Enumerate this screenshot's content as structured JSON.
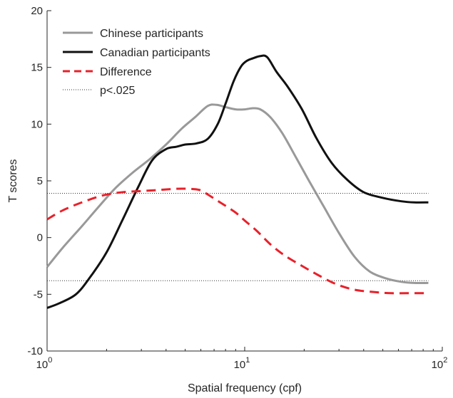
{
  "chart_data": {
    "type": "line",
    "xlabel": "Spatial frequency (cpf)",
    "ylabel": "T scores",
    "xscale": "log",
    "xlim": [
      1,
      100
    ],
    "ylim": [
      -10,
      20
    ],
    "grid": false,
    "legend_position": "top-left",
    "x_ticks": [
      {
        "value": 1,
        "base": "10",
        "exp": "0"
      },
      {
        "value": 10,
        "base": "10",
        "exp": "1"
      },
      {
        "value": 100,
        "base": "10",
        "exp": "2"
      }
    ],
    "y_ticks": [
      {
        "value": -10,
        "label": "-10"
      },
      {
        "value": -5,
        "label": "-5"
      },
      {
        "value": 0,
        "label": "0"
      },
      {
        "value": 5,
        "label": "5"
      },
      {
        "value": 10,
        "label": "10"
      },
      {
        "value": 15,
        "label": "15"
      },
      {
        "value": 20,
        "label": "20"
      }
    ],
    "series": [
      {
        "name": "Chinese participants",
        "color": "#999999",
        "style": "solid",
        "x": [
          1.0,
          1.2,
          1.5,
          1.8,
          2.2,
          2.7,
          3.3,
          4.0,
          4.8,
          5.6,
          6.5,
          7.2,
          8.0,
          9.0,
          10.0,
          11.0,
          12.0,
          13.5,
          15.5,
          18.0,
          21.0,
          25.0,
          30.0,
          36.0,
          43.0,
          52.0,
          62.0,
          72.0,
          85.0
        ],
        "values": [
          -2.6,
          -0.9,
          1.0,
          2.6,
          4.3,
          5.7,
          6.9,
          8.2,
          9.6,
          10.6,
          11.6,
          11.7,
          11.5,
          11.3,
          11.3,
          11.4,
          11.3,
          10.6,
          9.2,
          7.2,
          5.1,
          2.8,
          0.4,
          -1.7,
          -3.0,
          -3.6,
          -3.9,
          -4.0,
          -4.0
        ]
      },
      {
        "name": "Canadian participants",
        "color": "#111111",
        "style": "solid",
        "x": [
          1.0,
          1.15,
          1.4,
          1.65,
          2.0,
          2.4,
          2.9,
          3.4,
          4.0,
          4.5,
          5.0,
          5.7,
          6.5,
          7.3,
          8.0,
          8.8,
          9.6,
          10.3,
          11.0,
          12.0,
          13.0,
          14.5,
          16.5,
          19.5,
          23.0,
          27.5,
          33.0,
          40.0,
          50.0,
          62.0,
          72.0,
          85.0
        ],
        "values": [
          -6.2,
          -5.8,
          -5.0,
          -3.5,
          -1.3,
          1.5,
          4.5,
          6.8,
          7.8,
          8.0,
          8.2,
          8.3,
          8.7,
          10.0,
          11.8,
          13.8,
          15.1,
          15.6,
          15.8,
          16.0,
          15.9,
          14.6,
          13.3,
          11.3,
          8.8,
          6.6,
          5.1,
          4.0,
          3.5,
          3.2,
          3.1,
          3.1
        ]
      },
      {
        "name": "Difference",
        "color": "#e8212a",
        "style": "dashed",
        "x": [
          1.0,
          1.2,
          1.5,
          1.9,
          2.4,
          3.0,
          3.7,
          4.5,
          5.2,
          5.9,
          6.5,
          7.2,
          8.0,
          9.0,
          10.0,
          11.5,
          13.5,
          16.0,
          19.5,
          23.5,
          29.0,
          36.0,
          45.0,
          55.0,
          68.0,
          85.0
        ],
        "values": [
          1.6,
          2.4,
          3.1,
          3.7,
          4.0,
          4.1,
          4.2,
          4.3,
          4.3,
          4.2,
          3.8,
          3.3,
          2.8,
          2.2,
          1.5,
          0.6,
          -0.6,
          -1.6,
          -2.5,
          -3.3,
          -4.1,
          -4.6,
          -4.8,
          -4.9,
          -4.9,
          -4.9
        ]
      }
    ],
    "reference_lines": [
      {
        "name": "p<.025",
        "color": "#333333",
        "style": "dotted",
        "values": [
          3.9,
          -3.8
        ],
        "x_range": [
          1,
          85
        ]
      }
    ]
  }
}
